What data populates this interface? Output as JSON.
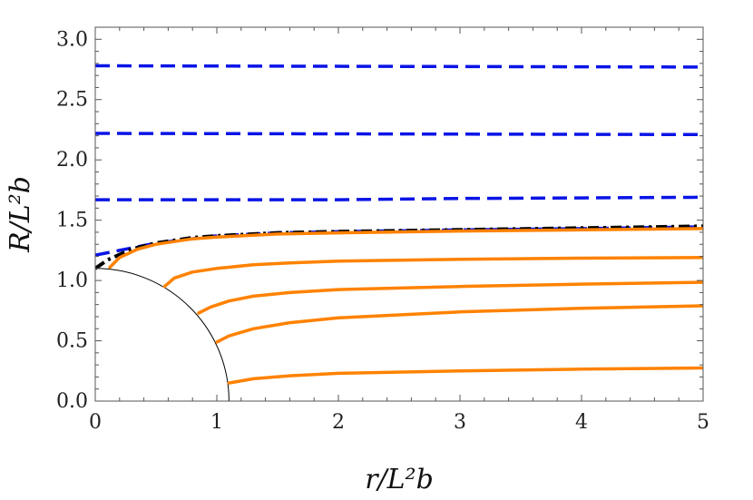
{
  "chart_data": {
    "type": "line",
    "title": "",
    "xlabel": "r/L²b",
    "ylabel": "R/L²b",
    "xlim": [
      0,
      5
    ],
    "ylim": [
      0,
      3.1
    ],
    "xticks": [
      "0",
      "1",
      "2",
      "3",
      "4",
      "5"
    ],
    "yticks": [
      "0.0",
      "0.5",
      "1.0",
      "1.5",
      "2.0",
      "2.5",
      "3.0"
    ],
    "grid": false,
    "legend": "none",
    "boundary": {
      "shape": "quarter-circle",
      "radius": 1.1,
      "color": "#000000"
    },
    "series": [
      {
        "style": "dashed",
        "color": "#0a14e6",
        "x": [
          0,
          5
        ],
        "y": [
          2.78,
          2.77
        ]
      },
      {
        "style": "dashed",
        "color": "#0a14e6",
        "x": [
          0,
          5
        ],
        "y": [
          2.22,
          2.21
        ]
      },
      {
        "style": "dashed",
        "color": "#0a14e6",
        "x": [
          0,
          1,
          2,
          3,
          4,
          5
        ],
        "y": [
          1.67,
          1.67,
          1.67,
          1.68,
          1.685,
          1.69
        ]
      },
      {
        "style": "dashed",
        "color": "#0a14e6",
        "x": [
          0,
          0.2,
          0.5,
          1,
          1.5,
          2,
          3,
          4,
          5
        ],
        "y": [
          1.21,
          1.25,
          1.31,
          1.37,
          1.395,
          1.405,
          1.42,
          1.43,
          1.445
        ]
      },
      {
        "style": "dash-dot",
        "color": "#000000",
        "x": [
          0,
          0.1,
          0.3,
          0.5,
          0.8,
          1,
          1.5,
          2,
          3,
          4,
          5
        ],
        "y": [
          1.1,
          1.17,
          1.26,
          1.31,
          1.355,
          1.37,
          1.395,
          1.405,
          1.42,
          1.435,
          1.45
        ]
      },
      {
        "style": "solid",
        "color": "#ff8200",
        "x": [
          0.12,
          0.2,
          0.35,
          0.5,
          0.8,
          1,
          1.5,
          2,
          3,
          4,
          5
        ],
        "y": [
          1.11,
          1.19,
          1.26,
          1.3,
          1.345,
          1.36,
          1.385,
          1.395,
          1.41,
          1.42,
          1.43
        ]
      },
      {
        "style": "solid",
        "color": "#ff8200",
        "x": [
          0.57,
          0.65,
          0.8,
          1,
          1.3,
          1.6,
          2,
          3,
          4,
          5
        ],
        "y": [
          0.95,
          1.02,
          1.07,
          1.1,
          1.13,
          1.145,
          1.16,
          1.175,
          1.185,
          1.19
        ]
      },
      {
        "style": "solid",
        "color": "#ff8200",
        "x": [
          0.85,
          0.95,
          1.1,
          1.3,
          1.6,
          2,
          3,
          4,
          5
        ],
        "y": [
          0.73,
          0.78,
          0.83,
          0.87,
          0.9,
          0.925,
          0.95,
          0.97,
          0.985
        ]
      },
      {
        "style": "solid",
        "color": "#ff8200",
        "x": [
          1.0,
          1.1,
          1.3,
          1.6,
          2,
          3,
          4,
          5
        ],
        "y": [
          0.49,
          0.54,
          0.6,
          0.65,
          0.69,
          0.74,
          0.77,
          0.79
        ]
      },
      {
        "style": "solid",
        "color": "#ff8200",
        "x": [
          1.1,
          1.3,
          1.6,
          2,
          3,
          4,
          5
        ],
        "y": [
          0.15,
          0.185,
          0.21,
          0.23,
          0.25,
          0.265,
          0.275
        ]
      }
    ]
  }
}
